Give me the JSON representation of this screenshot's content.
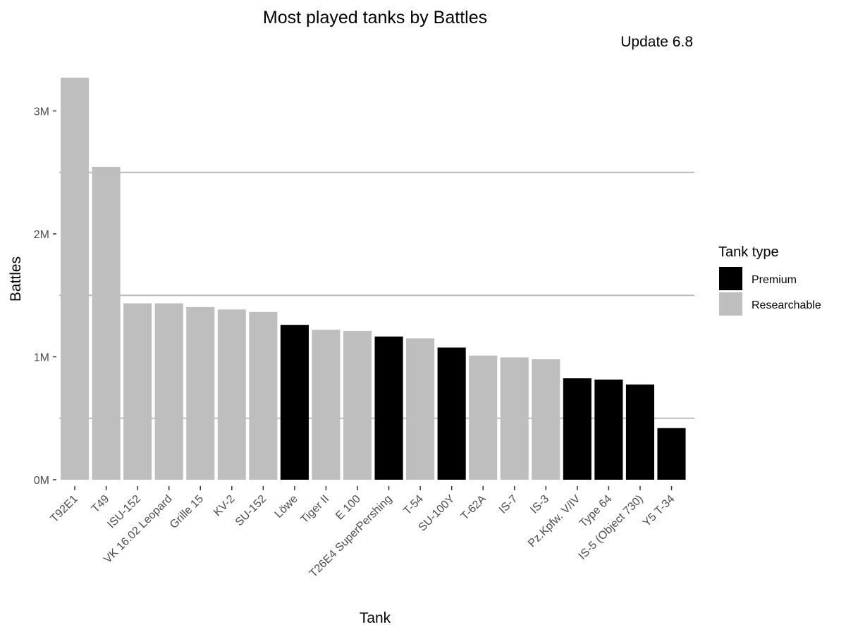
{
  "chart_data": {
    "type": "bar",
    "title": "Most played tanks by Battles",
    "subtitle": "Update 6.8",
    "xlabel": "Tank",
    "ylabel": "Battles",
    "ylim": [
      0,
      3300000
    ],
    "y_ticks": [
      {
        "value": 0,
        "label": "0M"
      },
      {
        "value": 1000000,
        "label": "1M"
      },
      {
        "value": 2000000,
        "label": "2M"
      },
      {
        "value": 3000000,
        "label": "3M"
      }
    ],
    "grid": "horizontal minor lines at 0.5M, 1.5M, 2.5M",
    "legend": {
      "title": "Tank type",
      "placement": "right",
      "entries": [
        {
          "name": "Premium",
          "color": "#000000"
        },
        {
          "name": "Researchable",
          "color": "#bebebe"
        }
      ]
    },
    "categories": [
      "T92E1",
      "T49",
      "ISU-152",
      "VK 16.02 Leopard",
      "Grille 15",
      "KV-2",
      "SU-152",
      "Löwe",
      "Tiger II",
      "E 100",
      "T26E4 SuperPershing",
      "T-54",
      "SU-100Y",
      "T-62A",
      "IS-7",
      "IS-3",
      "Pz.Kpfw. V/IV",
      "Type 64",
      "IS-5 (Object 730)",
      "Y5 T-34"
    ],
    "values": [
      3270000,
      2545000,
      1435000,
      1435000,
      1405000,
      1385000,
      1365000,
      1260000,
      1220000,
      1210000,
      1165000,
      1150000,
      1075000,
      1010000,
      995000,
      980000,
      825000,
      815000,
      775000,
      420000
    ],
    "types": [
      "Researchable",
      "Researchable",
      "Researchable",
      "Researchable",
      "Researchable",
      "Researchable",
      "Researchable",
      "Premium",
      "Researchable",
      "Researchable",
      "Premium",
      "Researchable",
      "Premium",
      "Researchable",
      "Researchable",
      "Researchable",
      "Premium",
      "Premium",
      "Premium",
      "Premium"
    ]
  }
}
